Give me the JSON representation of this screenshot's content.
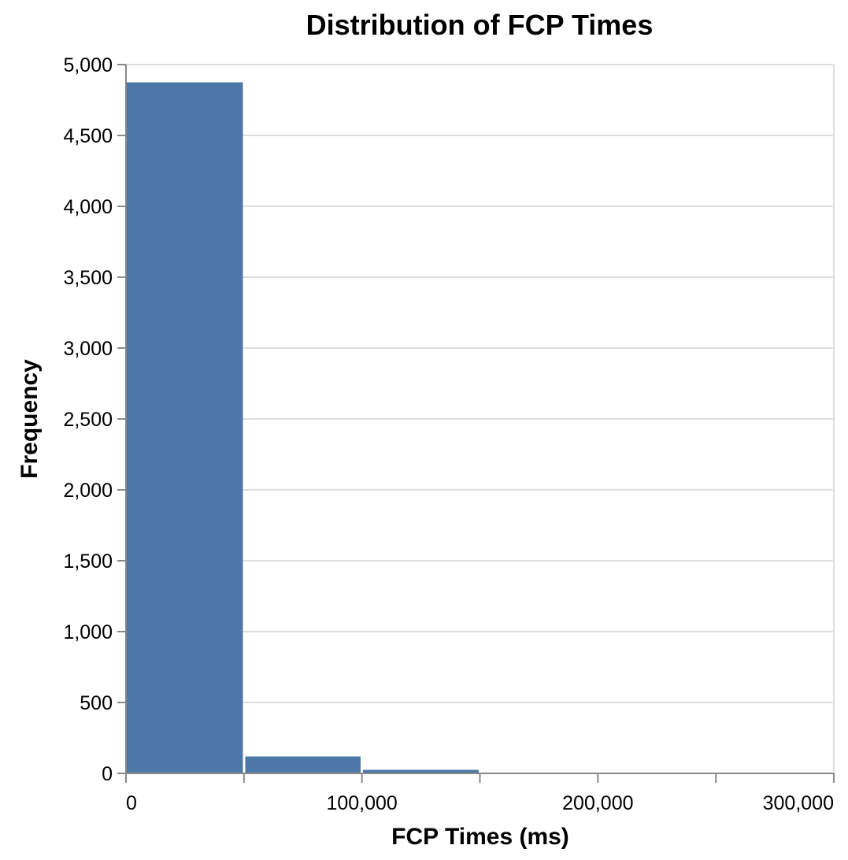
{
  "chart_data": {
    "type": "bar",
    "title": "Distribution of FCP Times",
    "xlabel": "FCP Times (ms)",
    "ylabel": "Frequency",
    "bins": [
      {
        "x0": 0,
        "x1": 50000,
        "count": 4875
      },
      {
        "x0": 50000,
        "x1": 100000,
        "count": 120
      },
      {
        "x0": 100000,
        "x1": 150000,
        "count": 25
      },
      {
        "x0": 150000,
        "x1": 200000,
        "count": 6
      },
      {
        "x0": 200000,
        "x1": 250000,
        "count": 3
      },
      {
        "x0": 250000,
        "x1": 300000,
        "count": 2
      }
    ],
    "xlim": [
      0,
      300000
    ],
    "ylim": [
      0,
      5000
    ],
    "x_ticks": [
      0,
      50000,
      100000,
      150000,
      200000,
      250000,
      300000
    ],
    "x_tick_labels": [
      "0",
      "",
      "100,000",
      "",
      "200,000",
      "",
      "300,000"
    ],
    "y_ticks": [
      0,
      500,
      1000,
      1500,
      2000,
      2500,
      3000,
      3500,
      4000,
      4500,
      5000
    ],
    "y_tick_labels": [
      "0",
      "500",
      "1,000",
      "1,500",
      "2,000",
      "2,500",
      "3,000",
      "3,500",
      "4,000",
      "4,500",
      "5,000"
    ],
    "grid": true,
    "bar_color": "#4c78a8"
  }
}
